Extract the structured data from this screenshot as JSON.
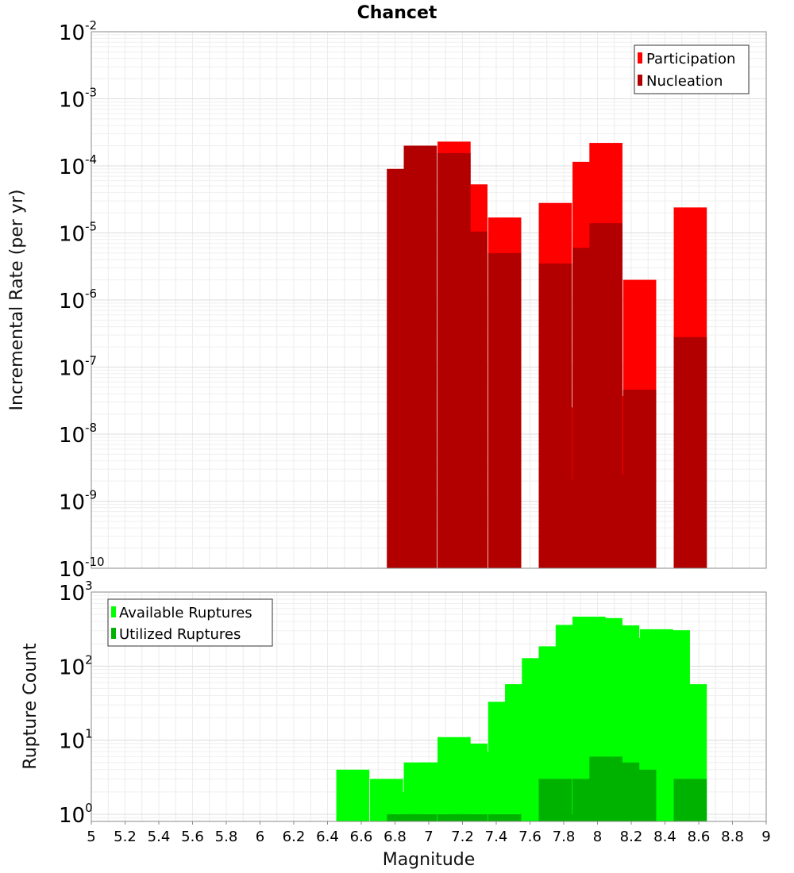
{
  "title": "Chancet",
  "chart_data": [
    {
      "type": "bar",
      "ylabel": "Incremental Rate (per yr)",
      "yscale": "log",
      "ylim": [
        1e-10,
        0.01
      ],
      "xlim": [
        5,
        9
      ],
      "y_ticks": [
        {
          "base": "10",
          "exp": "-10"
        },
        {
          "base": "10",
          "exp": "-9"
        },
        {
          "base": "10",
          "exp": "-8"
        },
        {
          "base": "10",
          "exp": "-7"
        },
        {
          "base": "10",
          "exp": "-6"
        },
        {
          "base": "10",
          "exp": "-5"
        },
        {
          "base": "10",
          "exp": "-4"
        },
        {
          "base": "10",
          "exp": "-3"
        },
        {
          "base": "10",
          "exp": "-2"
        }
      ],
      "legend_position": "top-right",
      "grid": true,
      "x": [
        6.85,
        6.95,
        7.15,
        7.25,
        7.45,
        7.75,
        7.85,
        7.95,
        8.05,
        8.15,
        8.25,
        8.55
      ],
      "series": [
        {
          "name": "Participation",
          "color": "#ff0000",
          "values": [
            9e-05,
            0.0002,
            0.00023,
            5.3e-05,
            1.7e-05,
            2.8e-05,
            2.5e-08,
            0.000115,
            0.00022,
            3.7e-08,
            2e-06,
            2.4e-05
          ]
        },
        {
          "name": "Nucleation",
          "color": "#b20000",
          "values": [
            9e-05,
            0.0002,
            0.000155,
            1.05e-05,
            5e-06,
            3.5e-06,
            2.1e-09,
            6e-06,
            1.4e-05,
            2.5e-09,
            4.6e-08,
            2.8e-07
          ]
        }
      ]
    },
    {
      "type": "bar",
      "ylabel": "Rupture Count",
      "xlabel": "Magnitude",
      "yscale": "log",
      "ylim": [
        0.8,
        1000
      ],
      "xlim": [
        5,
        9
      ],
      "y_ticks": [
        {
          "base": "10",
          "exp": "0"
        },
        {
          "base": "10",
          "exp": "1"
        },
        {
          "base": "10",
          "exp": "2"
        },
        {
          "base": "10",
          "exp": "3"
        }
      ],
      "x_ticks": [
        "5",
        "5.2",
        "5.4",
        "5.6",
        "5.8",
        "6",
        "6.2",
        "6.4",
        "6.6",
        "6.8",
        "7",
        "7.2",
        "7.4",
        "7.6",
        "7.8",
        "8",
        "8.2",
        "8.4",
        "8.6",
        "8.8",
        "9"
      ],
      "legend_position": "top-left",
      "grid": true,
      "x": [
        6.55,
        6.75,
        6.85,
        6.95,
        7.05,
        7.15,
        7.25,
        7.35,
        7.45,
        7.55,
        7.65,
        7.75,
        7.85,
        7.95,
        8.05,
        8.15,
        8.25,
        8.35,
        8.45,
        8.55
      ],
      "series": [
        {
          "name": "Available Ruptures",
          "color": "#00ff00",
          "values": [
            4,
            3,
            2,
            5,
            5,
            11,
            9,
            7,
            33,
            57,
            128,
            185,
            360,
            465,
            445,
            355,
            240,
            315,
            305,
            57
          ]
        },
        {
          "name": "Utilized Ruptures",
          "color": "#00b200",
          "values": [
            null,
            null,
            1,
            1,
            null,
            1,
            1,
            null,
            1,
            null,
            null,
            3,
            1,
            3,
            6,
            5,
            4,
            null,
            null,
            3
          ]
        }
      ]
    }
  ]
}
